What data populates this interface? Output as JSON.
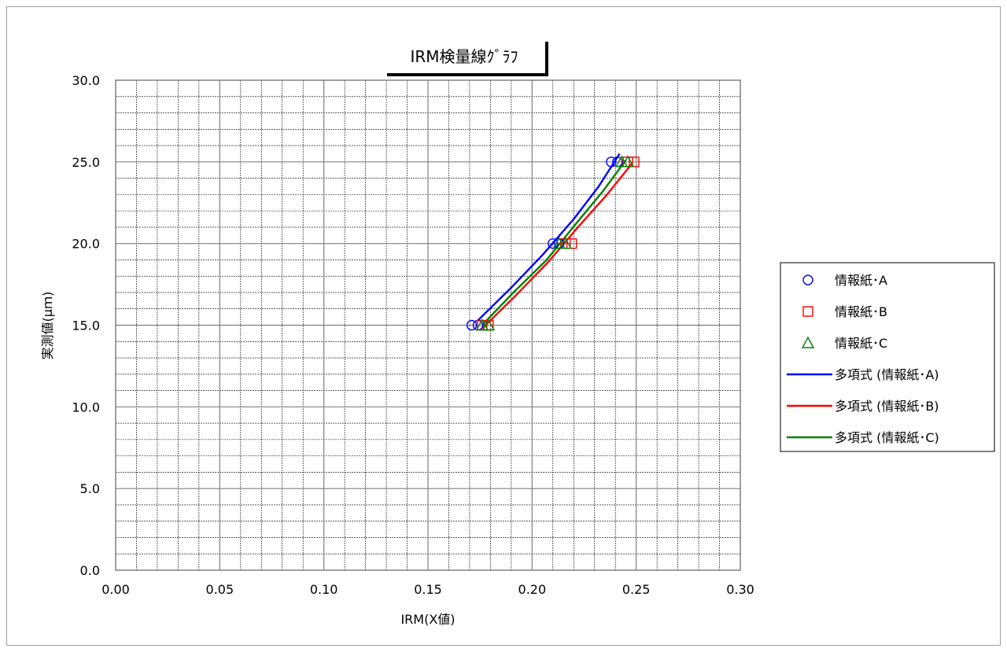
{
  "chart_data": {
    "type": "scatter",
    "title": "IRM検量線ｸﾞﾗﾌ",
    "xlabel": "IRM(X値)",
    "ylabel": "実測値(μｍ)",
    "xlim": [
      0.0,
      0.3
    ],
    "ylim": [
      0.0,
      30.0
    ],
    "x_ticks": [
      "0.00",
      "0.05",
      "0.10",
      "0.15",
      "0.20",
      "0.25",
      "0.30"
    ],
    "y_ticks": [
      "0.0",
      "5.0",
      "10.0",
      "15.0",
      "20.0",
      "25.0",
      "30.0"
    ],
    "x_tick_values": [
      0.0,
      0.05,
      0.1,
      0.15,
      0.2,
      0.25,
      0.3
    ],
    "y_tick_values": [
      0.0,
      5.0,
      10.0,
      15.0,
      20.0,
      25.0,
      30.0
    ],
    "grid": true,
    "legend_position": "right",
    "series": [
      {
        "name": "情報紙･A",
        "marker": "circle",
        "color": "#0000ff",
        "points": [
          [
            0.171,
            15.0
          ],
          [
            0.174,
            15.0
          ],
          [
            0.21,
            20.0
          ],
          [
            0.213,
            20.0
          ],
          [
            0.238,
            25.0
          ],
          [
            0.241,
            25.0
          ]
        ]
      },
      {
        "name": "情報紙･B",
        "marker": "square",
        "color": "#ff0000",
        "points": [
          [
            0.176,
            15.0
          ],
          [
            0.179,
            15.0
          ],
          [
            0.216,
            20.0
          ],
          [
            0.219,
            20.0
          ],
          [
            0.246,
            25.0
          ],
          [
            0.249,
            25.0
          ]
        ]
      },
      {
        "name": "情報紙･C",
        "marker": "triangle",
        "color": "#008000",
        "points": [
          [
            0.176,
            15.0
          ],
          [
            0.179,
            15.0
          ],
          [
            0.213,
            20.0
          ],
          [
            0.216,
            20.0
          ],
          [
            0.243,
            25.0
          ],
          [
            0.246,
            25.0
          ]
        ]
      }
    ],
    "trendlines": [
      {
        "name": "多項式 (情報紙･A)",
        "color": "#0000ff",
        "points": [
          [
            0.174,
            15.3
          ],
          [
            0.19,
            17.3
          ],
          [
            0.205,
            19.3
          ],
          [
            0.22,
            21.5
          ],
          [
            0.232,
            23.5
          ],
          [
            0.242,
            25.5
          ]
        ]
      },
      {
        "name": "多項式 (情報紙･B)",
        "color": "#ff0000",
        "points": [
          [
            0.176,
            14.8
          ],
          [
            0.192,
            16.8
          ],
          [
            0.208,
            18.9
          ],
          [
            0.222,
            21.0
          ],
          [
            0.236,
            23.0
          ],
          [
            0.248,
            24.9
          ]
        ]
      },
      {
        "name": "多項式 (情報紙･C)",
        "color": "#008000",
        "points": [
          [
            0.176,
            15.0
          ],
          [
            0.191,
            17.0
          ],
          [
            0.207,
            19.0
          ],
          [
            0.221,
            21.2
          ],
          [
            0.234,
            23.2
          ],
          [
            0.245,
            25.1
          ]
        ]
      }
    ]
  }
}
